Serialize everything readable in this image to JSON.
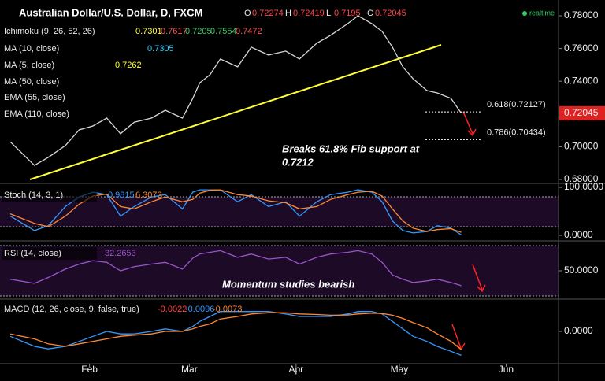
{
  "header": {
    "title": "Australian Dollar/U.S. Dollar, D, FXCM",
    "ohlc": [
      {
        "k": "O",
        "v": "0.72274"
      },
      {
        "k": "H",
        "v": "0.72419"
      },
      {
        "k": "L",
        "v": "0.7195"
      },
      {
        "k": "C",
        "v": "0.72045"
      }
    ],
    "indicators": [
      {
        "label": "Ichimoku (9, 26, 52, 26)",
        "values": [
          "0.7301",
          "0.7617",
          "0.7205",
          "0.7554",
          "0.7472"
        ],
        "colors": [
          "#ffff33",
          "#ff5555",
          "#33cc66",
          "#33cc66",
          "#ff5555"
        ]
      },
      {
        "label": "MA (10, close)",
        "values": [
          "0.7305"
        ],
        "colors": [
          "#33ccff"
        ]
      },
      {
        "label": "MA (5, close)",
        "values": [
          "0.7262"
        ],
        "colors": [
          "#ffff33"
        ]
      },
      {
        "label": "MA (50, close)",
        "values": [],
        "colors": []
      },
      {
        "label": "EMA (55, close)",
        "values": [],
        "colors": []
      },
      {
        "label": "EMA (110, close)",
        "values": [],
        "colors": []
      }
    ],
    "realtime": "realtime",
    "last_price": 0.72045
  },
  "chart_data": [
    {
      "type": "line",
      "xlim": [
        5,
        167
      ],
      "ylim": [
        0.68,
        0.7872
      ],
      "yticks": [
        {
          "value": 0.68,
          "label": "0.68000"
        },
        {
          "value": 0.7,
          "label": "0.70000"
        },
        {
          "value": 0.72,
          "label": "0.72000"
        },
        {
          "value": 0.74,
          "label": "0.74000"
        },
        {
          "value": 0.76,
          "label": "0.76000"
        },
        {
          "value": 0.78,
          "label": "0.78000"
        }
      ],
      "x": [
        8,
        15,
        19,
        24,
        28,
        32,
        36,
        40,
        44,
        49,
        53,
        58,
        61,
        63,
        66,
        69,
        74,
        78,
        83,
        88,
        92,
        97,
        101,
        106,
        109,
        113,
        116,
        119,
        122,
        125,
        129,
        132,
        136,
        139
      ],
      "series": [
        {
          "color": "#d8d8d8",
          "values": [
            0.703,
            0.6886,
            0.6935,
            0.7007,
            0.7103,
            0.7127,
            0.7175,
            0.708,
            0.715,
            0.7175,
            0.7223,
            0.7175,
            0.7295,
            0.739,
            0.744,
            0.7536,
            0.7488,
            0.7608,
            0.756,
            0.7584,
            0.7536,
            0.7632,
            0.768,
            0.7752,
            0.78,
            0.7752,
            0.7704,
            0.7608,
            0.7488,
            0.7415,
            0.7343,
            0.7329,
            0.7295,
            0.72045
          ]
        }
      ],
      "levels": [
        {
          "value": 0.72127,
          "label": "0.618(0.72127)"
        },
        {
          "value": 0.70434,
          "label": "0.786(0.70434)"
        }
      ],
      "annotation": [
        "Breaks 61.8% Fib support at",
        "0.7212"
      ]
    },
    {
      "type": "line",
      "title": "Stoch (14, 3, 1)",
      "readouts": [
        "0.9815",
        "6.3073"
      ],
      "readout_colors": [
        "#3399ff",
        "#ff8833"
      ],
      "xlim": [
        5,
        167
      ],
      "ylim": [
        0,
        100
      ],
      "yticks": [
        {
          "value": 100,
          "label": "100.0000"
        },
        {
          "value": 0,
          "label": "0.0000"
        }
      ],
      "x": [
        8,
        15,
        19,
        24,
        28,
        32,
        36,
        40,
        44,
        49,
        53,
        58,
        61,
        63,
        66,
        69,
        74,
        78,
        83,
        88,
        92,
        97,
        101,
        106,
        109,
        113,
        116,
        119,
        122,
        125,
        129,
        132,
        136,
        139
      ],
      "series": [
        {
          "color": "#3399ff",
          "values": [
            40,
            10,
            20,
            60,
            80,
            90,
            85,
            40,
            60,
            80,
            85,
            55,
            90,
            95,
            95,
            95,
            70,
            85,
            60,
            70,
            40,
            70,
            85,
            90,
            95,
            90,
            70,
            30,
            10,
            5,
            8,
            20,
            15,
            0.9815
          ]
        },
        {
          "color": "#ff8833",
          "values": [
            45,
            25,
            18,
            40,
            65,
            82,
            86,
            60,
            55,
            70,
            80,
            70,
            75,
            88,
            94,
            95,
            85,
            82,
            72,
            68,
            55,
            60,
            75,
            85,
            90,
            92,
            82,
            55,
            30,
            15,
            8,
            12,
            14,
            6.3073
          ]
        }
      ]
    },
    {
      "type": "line",
      "title": "RSI (14, close)",
      "readouts": [
        "32.2653"
      ],
      "readout_colors": [
        "#9955cc"
      ],
      "xlim": [
        5,
        167
      ],
      "ylim": [
        20,
        80
      ],
      "yticks": [
        {
          "value": 50,
          "label": "50.0000"
        }
      ],
      "x": [
        8,
        15,
        19,
        24,
        28,
        32,
        36,
        40,
        44,
        49,
        53,
        58,
        61,
        63,
        66,
        69,
        74,
        78,
        83,
        88,
        92,
        97,
        101,
        106,
        109,
        113,
        116,
        119,
        122,
        125,
        129,
        132,
        136,
        139
      ],
      "series": [
        {
          "color": "#9955cc",
          "values": [
            40,
            35,
            42,
            52,
            58,
            62,
            60,
            50,
            55,
            58,
            60,
            52,
            65,
            70,
            72,
            74,
            66,
            70,
            64,
            66,
            58,
            66,
            70,
            72,
            74,
            70,
            60,
            45,
            40,
            36,
            38,
            40,
            36,
            32.2653
          ]
        }
      ],
      "annotation": "Momentum studies bearish"
    },
    {
      "type": "line",
      "title": "MACD (12, 26, close, 9, false, true)",
      "readouts": [
        "-0.0022",
        "-0.0096",
        "-0.0073"
      ],
      "readout_colors": [
        "#ff4444",
        "#3399ff",
        "#ff8833"
      ],
      "xlim": [
        5,
        167
      ],
      "ylim": [
        -0.012,
        0.012
      ],
      "yticks": [
        {
          "value": 0,
          "label": "0.0000"
        }
      ],
      "xticks": [
        {
          "value": 31,
          "label": "Feb"
        },
        {
          "value": 60,
          "label": "Mar"
        },
        {
          "value": 91,
          "label": "Apr"
        },
        {
          "value": 121,
          "label": "May"
        },
        {
          "value": 152,
          "label": "Jun"
        }
      ],
      "x": [
        8,
        15,
        19,
        24,
        28,
        32,
        36,
        40,
        44,
        49,
        53,
        58,
        61,
        63,
        66,
        69,
        74,
        78,
        83,
        88,
        92,
        97,
        101,
        106,
        109,
        113,
        116,
        119,
        122,
        125,
        129,
        132,
        136,
        139
      ],
      "series": [
        {
          "color": "#3399ff",
          "values": [
            -0.002,
            -0.006,
            -0.007,
            -0.006,
            -0.004,
            -0.002,
            0,
            -0.001,
            -0.001,
            0,
            0.001,
            0,
            0.002,
            0.004,
            0.006,
            0.008,
            0.008,
            0.008,
            0.008,
            0.007,
            0.006,
            0.006,
            0.006,
            0.007,
            0.008,
            0.008,
            0.007,
            0.004,
            0.001,
            -0.002,
            -0.004,
            -0.006,
            -0.008,
            -0.0096
          ]
        },
        {
          "color": "#ff8833",
          "values": [
            -0.001,
            -0.003,
            -0.005,
            -0.006,
            -0.005,
            -0.004,
            -0.003,
            -0.002,
            -0.0015,
            -0.001,
            0,
            0,
            0.001,
            0.002,
            0.003,
            0.005,
            0.006,
            0.007,
            0.0075,
            0.0075,
            0.007,
            0.0068,
            0.0065,
            0.0066,
            0.007,
            0.0073,
            0.0072,
            0.0065,
            0.0052,
            0.0035,
            0.0015,
            -0.001,
            -0.004,
            -0.0073
          ]
        }
      ]
    }
  ]
}
